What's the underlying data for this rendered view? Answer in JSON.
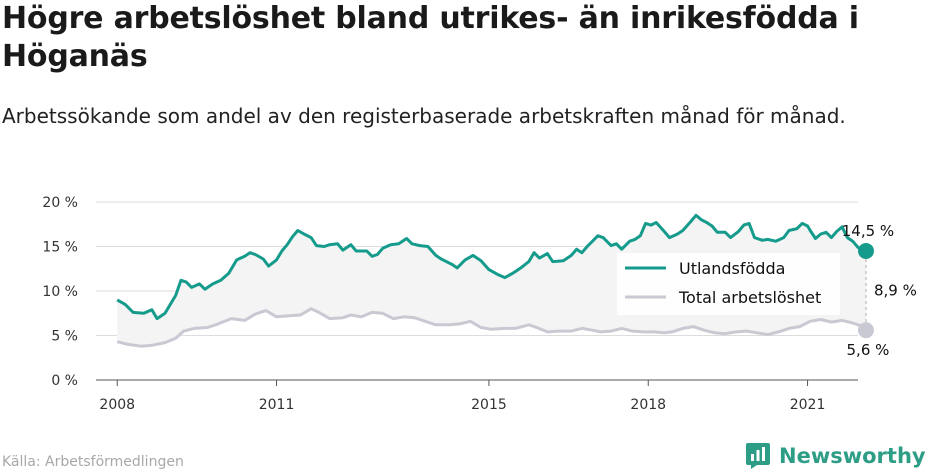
{
  "title": "Högre arbetslöshet bland utrikes- än inrikesfödda i Höganäs",
  "subtitle": "Arbetssökande som andel av den registerbaserade arbetskraften månad för månad.",
  "source": "Källa: Arbetsförmedlingen",
  "brand": "Newsworthy",
  "colors": {
    "foreign": "#159b8c",
    "total": "#c9c9d3",
    "band": "#f4f4f4",
    "brand": "#2e9d86"
  },
  "chart_data": {
    "type": "line",
    "x_unit": "year",
    "xlim": [
      2007.6,
      2021.95
    ],
    "ylim": [
      0,
      20
    ],
    "x_ticks": [
      2008,
      2011,
      2015,
      2018,
      2021
    ],
    "x_tick_labels": [
      "2008",
      "2011",
      "2015",
      "2018",
      "2021"
    ],
    "y_ticks": [
      0,
      5,
      10,
      15,
      20
    ],
    "y_tick_labels": [
      "0 %",
      "5 %",
      "10 %",
      "15 %",
      "20 %"
    ],
    "grid": true,
    "legend_position": "right",
    "series": [
      {
        "name": "Utlandsfödda",
        "color": "#159b8c",
        "end_label": "14,5 %",
        "points": [
          [
            2008.0,
            9.0
          ],
          [
            2008.15,
            8.5
          ],
          [
            2008.3,
            7.6
          ],
          [
            2008.5,
            7.5
          ],
          [
            2008.65,
            7.9
          ],
          [
            2008.75,
            6.9
          ],
          [
            2008.9,
            7.5
          ],
          [
            2009.0,
            8.5
          ],
          [
            2009.1,
            9.5
          ],
          [
            2009.2,
            11.2
          ],
          [
            2009.3,
            11.0
          ],
          [
            2009.4,
            10.4
          ],
          [
            2009.55,
            10.8
          ],
          [
            2009.65,
            10.2
          ],
          [
            2009.8,
            10.8
          ],
          [
            2009.95,
            11.2
          ],
          [
            2010.1,
            12.0
          ],
          [
            2010.25,
            13.5
          ],
          [
            2010.4,
            13.9
          ],
          [
            2010.5,
            14.3
          ],
          [
            2010.6,
            14.1
          ],
          [
            2010.75,
            13.6
          ],
          [
            2010.85,
            12.8
          ],
          [
            2011.0,
            13.5
          ],
          [
            2011.1,
            14.5
          ],
          [
            2011.2,
            15.2
          ],
          [
            2011.3,
            16.1
          ],
          [
            2011.4,
            16.8
          ],
          [
            2011.55,
            16.3
          ],
          [
            2011.65,
            16.0
          ],
          [
            2011.75,
            15.1
          ],
          [
            2011.9,
            15.0
          ],
          [
            2012.0,
            15.2
          ],
          [
            2012.15,
            15.3
          ],
          [
            2012.25,
            14.6
          ],
          [
            2012.4,
            15.2
          ],
          [
            2012.5,
            14.5
          ],
          [
            2012.7,
            14.5
          ],
          [
            2012.8,
            13.9
          ],
          [
            2012.9,
            14.1
          ],
          [
            2013.0,
            14.8
          ],
          [
            2013.15,
            15.2
          ],
          [
            2013.3,
            15.3
          ],
          [
            2013.45,
            15.9
          ],
          [
            2013.55,
            15.3
          ],
          [
            2013.7,
            15.1
          ],
          [
            2013.85,
            15.0
          ],
          [
            2014.0,
            14.0
          ],
          [
            2014.1,
            13.6
          ],
          [
            2014.3,
            13.0
          ],
          [
            2014.4,
            12.6
          ],
          [
            2014.55,
            13.5
          ],
          [
            2014.7,
            14.0
          ],
          [
            2014.85,
            13.4
          ],
          [
            2015.0,
            12.4
          ],
          [
            2015.15,
            11.9
          ],
          [
            2015.3,
            11.5
          ],
          [
            2015.45,
            12.0
          ],
          [
            2015.6,
            12.6
          ],
          [
            2015.75,
            13.3
          ],
          [
            2015.85,
            14.3
          ],
          [
            2015.95,
            13.7
          ],
          [
            2016.1,
            14.2
          ],
          [
            2016.2,
            13.3
          ],
          [
            2016.4,
            13.4
          ],
          [
            2016.55,
            14.0
          ],
          [
            2016.65,
            14.7
          ],
          [
            2016.75,
            14.3
          ],
          [
            2016.85,
            15.0
          ],
          [
            2016.95,
            15.6
          ],
          [
            2017.05,
            16.2
          ],
          [
            2017.15,
            16.0
          ],
          [
            2017.3,
            15.1
          ],
          [
            2017.4,
            15.3
          ],
          [
            2017.5,
            14.7
          ],
          [
            2017.65,
            15.6
          ],
          [
            2017.75,
            15.8
          ],
          [
            2017.85,
            16.2
          ],
          [
            2017.95,
            17.6
          ],
          [
            2018.05,
            17.4
          ],
          [
            2018.15,
            17.7
          ],
          [
            2018.3,
            16.7
          ],
          [
            2018.4,
            16.0
          ],
          [
            2018.55,
            16.4
          ],
          [
            2018.65,
            16.8
          ],
          [
            2018.8,
            17.8
          ],
          [
            2018.9,
            18.5
          ],
          [
            2019.0,
            18.0
          ],
          [
            2019.1,
            17.7
          ],
          [
            2019.2,
            17.3
          ],
          [
            2019.3,
            16.6
          ],
          [
            2019.45,
            16.6
          ],
          [
            2019.55,
            16.0
          ],
          [
            2019.7,
            16.7
          ],
          [
            2019.8,
            17.4
          ],
          [
            2019.9,
            17.6
          ],
          [
            2020.0,
            16.0
          ],
          [
            2020.15,
            15.7
          ],
          [
            2020.25,
            15.8
          ],
          [
            2020.4,
            15.6
          ],
          [
            2020.55,
            16.0
          ],
          [
            2020.65,
            16.8
          ],
          [
            2020.8,
            17.0
          ],
          [
            2020.9,
            17.6
          ],
          [
            2021.0,
            17.3
          ],
          [
            2021.05,
            16.8
          ],
          [
            2021.15,
            15.9
          ],
          [
            2021.25,
            16.4
          ],
          [
            2021.35,
            16.6
          ],
          [
            2021.45,
            16.0
          ],
          [
            2021.55,
            16.7
          ],
          [
            2021.65,
            17.2
          ],
          [
            2021.75,
            16.0
          ],
          [
            2021.85,
            15.6
          ],
          [
            2021.95,
            14.9
          ],
          [
            2022.1,
            14.5
          ]
        ]
      },
      {
        "name": "Total arbetslöshet",
        "color": "#c9c9d3",
        "end_label": "5,6 %",
        "points": [
          [
            2008.0,
            4.3
          ],
          [
            2008.2,
            4.0
          ],
          [
            2008.45,
            3.8
          ],
          [
            2008.65,
            3.9
          ],
          [
            2008.9,
            4.2
          ],
          [
            2009.1,
            4.7
          ],
          [
            2009.25,
            5.5
          ],
          [
            2009.45,
            5.8
          ],
          [
            2009.7,
            5.9
          ],
          [
            2009.9,
            6.3
          ],
          [
            2010.15,
            6.9
          ],
          [
            2010.4,
            6.7
          ],
          [
            2010.6,
            7.4
          ],
          [
            2010.8,
            7.8
          ],
          [
            2011.0,
            7.1
          ],
          [
            2011.2,
            7.2
          ],
          [
            2011.45,
            7.3
          ],
          [
            2011.65,
            8.0
          ],
          [
            2011.8,
            7.6
          ],
          [
            2012.0,
            6.9
          ],
          [
            2012.25,
            7.0
          ],
          [
            2012.4,
            7.3
          ],
          [
            2012.6,
            7.1
          ],
          [
            2012.8,
            7.6
          ],
          [
            2013.0,
            7.5
          ],
          [
            2013.2,
            6.9
          ],
          [
            2013.4,
            7.1
          ],
          [
            2013.6,
            7.0
          ],
          [
            2013.8,
            6.6
          ],
          [
            2014.0,
            6.2
          ],
          [
            2014.25,
            6.2
          ],
          [
            2014.45,
            6.3
          ],
          [
            2014.65,
            6.6
          ],
          [
            2014.85,
            5.9
          ],
          [
            2015.05,
            5.7
          ],
          [
            2015.3,
            5.8
          ],
          [
            2015.5,
            5.8
          ],
          [
            2015.75,
            6.2
          ],
          [
            2015.9,
            5.9
          ],
          [
            2016.1,
            5.4
          ],
          [
            2016.3,
            5.5
          ],
          [
            2016.55,
            5.5
          ],
          [
            2016.75,
            5.8
          ],
          [
            2016.95,
            5.6
          ],
          [
            2017.1,
            5.4
          ],
          [
            2017.3,
            5.5
          ],
          [
            2017.5,
            5.8
          ],
          [
            2017.7,
            5.5
          ],
          [
            2017.9,
            5.4
          ],
          [
            2018.1,
            5.4
          ],
          [
            2018.3,
            5.3
          ],
          [
            2018.45,
            5.4
          ],
          [
            2018.65,
            5.8
          ],
          [
            2018.85,
            6.0
          ],
          [
            2019.05,
            5.6
          ],
          [
            2019.25,
            5.3
          ],
          [
            2019.45,
            5.2
          ],
          [
            2019.65,
            5.4
          ],
          [
            2019.85,
            5.5
          ],
          [
            2020.05,
            5.3
          ],
          [
            2020.25,
            5.1
          ],
          [
            2020.45,
            5.4
          ],
          [
            2020.65,
            5.8
          ],
          [
            2020.85,
            6.0
          ],
          [
            2021.05,
            6.6
          ],
          [
            2021.25,
            6.8
          ],
          [
            2021.45,
            6.5
          ],
          [
            2021.65,
            6.7
          ],
          [
            2021.85,
            6.4
          ],
          [
            2022.0,
            6.1
          ],
          [
            2022.1,
            5.6
          ]
        ]
      }
    ],
    "gap_label": "8,9 %"
  }
}
